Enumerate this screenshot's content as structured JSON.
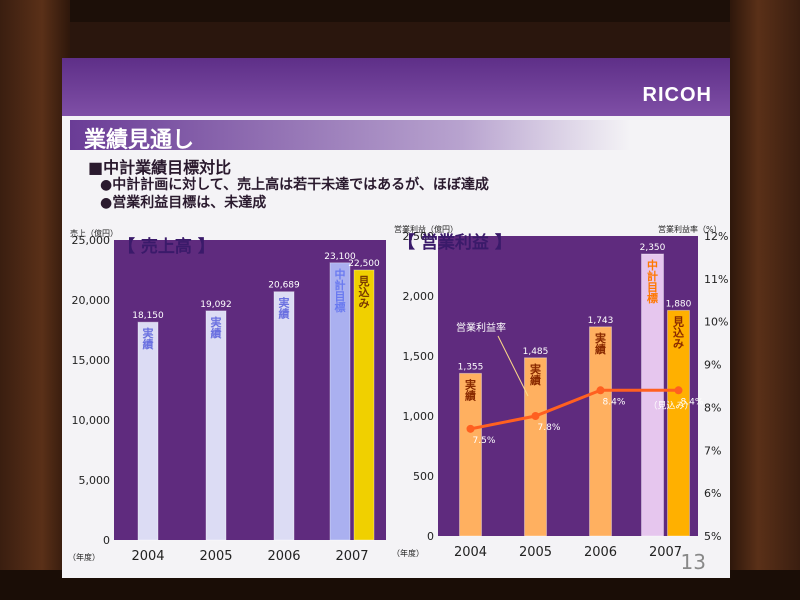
{
  "slide": {
    "logo": "RICOH",
    "title": "業績見通し",
    "heading": "■中計業績目標対比",
    "bullets": [
      "●中計計画に対して、売上高は若干未達ではあるが、ほぼ達成",
      "●営業利益目標は、未達成"
    ],
    "page_number": "13"
  },
  "colors": {
    "chart_bg": "#5f2b7e",
    "bar_actual_left": "#dcdcf4",
    "bar_target_left": "#aab0f0",
    "bar_forecast_left": "#f0d000",
    "bar_actual_right": "#ffb060",
    "bar_target_right": "#e6c6ee",
    "bar_forecast_right": "#ffb000",
    "line": "#ff6020"
  },
  "chart_data": [
    {
      "type": "bar",
      "title": "【 売上高 】",
      "ylabel": "売上（億円）",
      "xunit": "（年度）",
      "ylim": [
        0,
        25000
      ],
      "yticks": [
        "0",
        "5,000",
        "10,000",
        "15,000",
        "20,000",
        "25,000"
      ],
      "categories": [
        "2004",
        "2005",
        "2006",
        "2007"
      ],
      "bars": [
        {
          "x": "2004",
          "value": 18150,
          "value_label": "18,150",
          "tag": "実績",
          "kind": "actual"
        },
        {
          "x": "2005",
          "value": 19092,
          "value_label": "19,092",
          "tag": "実績",
          "kind": "actual"
        },
        {
          "x": "2006",
          "value": 20689,
          "value_label": "20,689",
          "tag": "実績",
          "kind": "actual"
        },
        {
          "x": "2007",
          "value": 23100,
          "value_label": "23,100",
          "tag": "中計目標",
          "kind": "target"
        },
        {
          "x": "2007",
          "value": 22500,
          "value_label": "22,500",
          "tag": "見込み",
          "kind": "forecast"
        }
      ]
    },
    {
      "type": "bar",
      "title": "【 営業利益 】",
      "ylabel": "営業利益（億円）",
      "y2label": "営業利益率（%）",
      "xunit": "（年度）",
      "ylim": [
        0,
        2500
      ],
      "yticks": [
        "0",
        "500",
        "1,000",
        "1,500",
        "2,000",
        "2,500"
      ],
      "y2lim": [
        5,
        12
      ],
      "y2ticks": [
        "5%",
        "6%",
        "7%",
        "8%",
        "9%",
        "10%",
        "11%",
        "12%"
      ],
      "categories": [
        "2004",
        "2005",
        "2006",
        "2007"
      ],
      "bars": [
        {
          "x": "2004",
          "value": 1355,
          "value_label": "1,355",
          "tag": "実績",
          "kind": "actual"
        },
        {
          "x": "2005",
          "value": 1485,
          "value_label": "1,485",
          "tag": "実績",
          "kind": "actual"
        },
        {
          "x": "2006",
          "value": 1743,
          "value_label": "1,743",
          "tag": "実績",
          "kind": "actual"
        },
        {
          "x": "2007",
          "value": 2350,
          "value_label": "2,350",
          "tag": "中計目標",
          "kind": "target"
        },
        {
          "x": "2007",
          "value": 1880,
          "value_label": "1,880",
          "tag": "見込み",
          "kind": "forecast"
        }
      ],
      "line_series": {
        "name": "営業利益率",
        "points": [
          {
            "x": "2004",
            "value": 7.5,
            "label": "7.5%"
          },
          {
            "x": "2005",
            "value": 7.8,
            "label": "7.8%"
          },
          {
            "x": "2006",
            "value": 8.4,
            "label": "8.4%"
          },
          {
            "x": "2007",
            "value": 8.4,
            "label": "8.4%",
            "note": "（見込み）"
          }
        ]
      }
    }
  ]
}
